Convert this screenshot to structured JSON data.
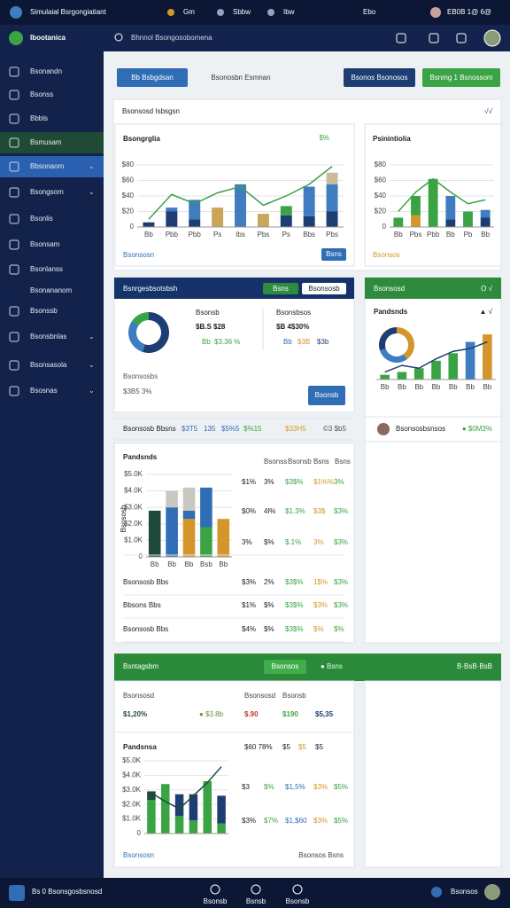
{
  "topbar": {
    "title": "Simulaial Bsrgongiatiant",
    "tabs": [
      "Gm",
      "Sbbw",
      "Ibw"
    ],
    "status": "Ebo",
    "date": "EB0B 1@ 6@"
  },
  "header": {
    "brand": "Ibootanica",
    "search": "Bhnnol Bsongosobomena"
  },
  "sidebar": {
    "items": [
      "Bsonandn",
      "Bsonss",
      "Bbbls",
      "Bsmusam",
      "Bbsonaom",
      "Bsongsom",
      "Bsonlis",
      "Bsonsam",
      "Bsonlanss",
      "Bsonananom",
      "Bsonssb",
      "Bsonsbnlas",
      "Bsonsasola",
      "Bsosnas"
    ]
  },
  "toolbar": {
    "buttons": [
      "Bb Bsbgdsan",
      "Bsonosbn Esmnan",
      "Bsonos Bsonosos",
      "Bsnmg 1 Bsnossom"
    ]
  },
  "overview": {
    "title": "Bsonsosd Isbsgsn",
    "toggle": "√√"
  },
  "chart_a": {
    "type": "bar",
    "title": "Bsongrglia",
    "badge": "$%",
    "link": "Bsonsosn",
    "button": "Bsns",
    "categories": [
      "Bb",
      "Pbb",
      "Pbb",
      "Ps",
      "Ibs",
      "Pbs",
      "Ps",
      "Bbs",
      "Pbs"
    ],
    "series": [
      {
        "color": "#1e3d73",
        "values": [
          6,
          20,
          10,
          0,
          0,
          0,
          15,
          14,
          20
        ]
      },
      {
        "color": "#3f7cc0",
        "values": [
          0,
          5,
          25,
          0,
          55,
          0,
          0,
          38,
          35
        ]
      },
      {
        "color": "#c9a65a",
        "values": [
          0,
          0,
          0,
          25,
          0,
          17,
          0,
          0,
          0
        ]
      },
      {
        "color": "#3aa344",
        "values": [
          0,
          0,
          0,
          0,
          0,
          0,
          12,
          0,
          0
        ]
      },
      {
        "color": "#c8bd96",
        "values": [
          0,
          0,
          0,
          0,
          0,
          0,
          0,
          0,
          15
        ]
      }
    ],
    "line": {
      "color": "#3aa344",
      "values": [
        10,
        42,
        30,
        44,
        52,
        28,
        40,
        55,
        78
      ]
    },
    "ylim": [
      0,
      80
    ],
    "yticks": [
      0,
      {
        "value": 20,
        "label": "$20"
      },
      {
        "value": 40,
        "label": "$40"
      },
      {
        "value": 60,
        "label": "$60"
      },
      {
        "value": 80,
        "label": "$80"
      }
    ]
  },
  "chart_b": {
    "type": "bar",
    "title": "Psinintiolia",
    "link": "Bsonsos",
    "categories": [
      "Bb",
      "Pbs",
      "Pbb",
      "Bb",
      "Pb",
      "Bb"
    ],
    "series": [
      {
        "color": "#1e3d73",
        "values": [
          0,
          0,
          0,
          10,
          0,
          12
        ]
      },
      {
        "color": "#3f7cc0",
        "values": [
          0,
          0,
          0,
          30,
          0,
          10
        ]
      },
      {
        "color": "#d4952a",
        "values": [
          0,
          15,
          0,
          0,
          0,
          0
        ]
      },
      {
        "color": "#3aa344",
        "values": [
          12,
          25,
          62,
          0,
          20,
          0
        ]
      }
    ],
    "line": {
      "color": "#3aa344",
      "values": [
        20,
        45,
        62,
        45,
        30,
        35
      ]
    },
    "ylim": [
      0,
      80
    ],
    "yticks": [
      0,
      {
        "value": 20,
        "label": "$20"
      },
      {
        "value": 40,
        "label": "$40"
      },
      {
        "value": 60,
        "label": "$60"
      },
      {
        "value": 80,
        "label": "$80"
      }
    ]
  },
  "summary": {
    "title": "Bsnrgesbsotsbsh",
    "tabs": [
      "Bsns",
      "Bsonsosb"
    ],
    "donut": {
      "type": "pie",
      "values": [
        55,
        30,
        15
      ],
      "colors": [
        "#1e3d73",
        "#3f7cc0",
        "#3aa344"
      ]
    },
    "stat1": {
      "label": "Bsonsb",
      "value": "$B.S $28",
      "legend": [
        "Bb",
        "$3.36 %"
      ]
    },
    "stat2": {
      "label": "Bsonsbsos",
      "value": "$B 4$30%",
      "legend": [
        "Bb",
        "$3B",
        "$3b"
      ]
    },
    "note": "Bsonsosbs",
    "note_value": "$3B5 3%",
    "button": "Bsonsb",
    "row": [
      "Bsonsosb Bbsns",
      "$3T5",
      "135",
      "$5%5",
      "$%15",
      "$33H5",
      "©3 $b5"
    ],
    "row_colors": [
      "#222",
      "#2f6db5",
      "#2f6db5",
      "#2f6db5",
      "#3aa344",
      "#d4952a",
      "#555"
    ]
  },
  "products": {
    "title": "Pandsnds",
    "axis_label": "Bsnsosb",
    "header": [
      "Bsonss",
      "Bsonsb",
      "Bsns",
      "Bsns"
    ],
    "chart": {
      "type": "bar",
      "categories": [
        "Bb",
        "Bb",
        "Bb",
        "Bsb",
        "Bb"
      ],
      "series": [
        {
          "color": "#1d4a3a",
          "values": [
            2800,
            0,
            0,
            0,
            0
          ]
        },
        {
          "color": "#d4952a",
          "values": [
            0,
            0,
            2300,
            0,
            2300
          ]
        },
        {
          "color": "#3aa344",
          "values": [
            0,
            0,
            0,
            1800,
            0
          ]
        },
        {
          "color": "#2f6db5",
          "values": [
            0,
            3000,
            500,
            2400,
            0
          ]
        },
        {
          "color": "#c8c8c0",
          "values": [
            0,
            1000,
            1400,
            0,
            0
          ]
        }
      ],
      "ylim": [
        0,
        5000
      ],
      "yticks": [
        0,
        {
          "value": 1000,
          "label": "$1.0K"
        },
        {
          "value": 2000,
          "label": "$2.0K"
        },
        {
          "value": 3000,
          "label": "$3.0K"
        },
        {
          "value": 4000,
          "label": "$4.0K"
        },
        {
          "value": 5000,
          "label": "$5.0K"
        }
      ]
    },
    "rows": [
      {
        "cells": [
          "$1%",
          "3%",
          "$3$%",
          "$1%%",
          "3%"
        ]
      },
      {
        "cells": [
          "$0%",
          "4l%",
          "$1.3%",
          "$3$",
          "$3%"
        ]
      },
      {
        "cells": [
          "3%",
          "$%",
          "$.1%",
          "3%",
          "$3%"
        ]
      },
      {
        "label": "Bsonsosb Bbs",
        "cells": [
          "$3%",
          "2%",
          "$3$%",
          "1$%",
          "$3%"
        ]
      },
      {
        "label": "Bbsons Bbs",
        "cells": [
          "$1%",
          "$%",
          "$3$%",
          "$3%",
          "$3%"
        ]
      },
      {
        "label": "Bsonsosb Bbs",
        "cells": [
          "$4%",
          "$%",
          "$3$%",
          "$%",
          "$%"
        ]
      }
    ],
    "column_colors": [
      "#222",
      "#222",
      "#3aa344",
      "#d4952a",
      "#3aa344"
    ]
  },
  "side": {
    "title": "Bsonsosd",
    "controls": "O √",
    "subtitle": "Pandsnds",
    "sub_controls": "▲ √",
    "donut": {
      "type": "pie",
      "values": [
        40,
        30,
        30
      ],
      "colors": [
        "#d4952a",
        "#3f7cc0",
        "#1e3d73"
      ]
    },
    "chart": {
      "type": "bar",
      "categories": [
        "Bb",
        "Bb",
        "Bb",
        "Bb",
        "Bb",
        "Bb",
        "Bb"
      ],
      "series": [
        {
          "color": "#3aa344",
          "values": [
            5,
            8,
            12,
            20,
            28,
            0,
            0
          ]
        },
        {
          "color": "#3f7cc0",
          "values": [
            0,
            0,
            0,
            0,
            0,
            40,
            0
          ]
        },
        {
          "color": "#d4952a",
          "values": [
            0,
            0,
            0,
            0,
            0,
            0,
            48
          ]
        }
      ],
      "line": {
        "color": "#1e3d73",
        "values": [
          8,
          15,
          12,
          22,
          30,
          33,
          40
        ]
      },
      "ylim": [
        0,
        50
      ]
    },
    "person": "Bsonsosbsnsos",
    "person_value": "● $0M3%"
  },
  "finance": {
    "title": "Bsntagsbm",
    "button": "Bsonsos",
    "link": "● Bsns",
    "right": "B·BsB·BsB",
    "label1": "Bsonsosd",
    "value1": "$1,20%",
    "side1": "● $3.8b",
    "label2": "Bsonsosd",
    "label3": "Bsonsb",
    "values": [
      "$.90",
      "$190",
      "$5,35"
    ],
    "value_colors": [
      "#c0392b",
      "#3aa344",
      "#1e3d73"
    ],
    "chart_title": "Pandsnsa",
    "header": [
      "$60 78%",
      "$5",
      "$5",
      "$5"
    ],
    "rows": [
      [
        "$3",
        "$%",
        "$1,5%",
        "$3%",
        "$5%"
      ],
      [
        "$3%",
        "$7%",
        "$1,$60",
        "$3%",
        "$5%"
      ]
    ],
    "column_colors": [
      "#222",
      "#3aa344",
      "#2f6db5",
      "#d4952a",
      "#3aa344"
    ],
    "chart": {
      "type": "bar",
      "series": [
        {
          "color": "#3aa344",
          "values": [
            2300,
            3400,
            1200,
            900,
            3600,
            700
          ]
        },
        {
          "color": "#1d4a3a",
          "values": [
            600,
            0,
            0,
            0,
            0,
            0
          ]
        },
        {
          "color": "#1e3d73",
          "values": [
            0,
            0,
            1500,
            1800,
            0,
            1900
          ]
        }
      ],
      "line": {
        "color": "#1d4a3a",
        "values": [
          2800,
          2200,
          1700,
          2600,
          3500,
          4600
        ]
      },
      "ylim": [
        0,
        5000
      ],
      "yticks": [
        0,
        {
          "value": 1000,
          "label": "$1.0K"
        },
        {
          "value": 2000,
          "label": "$2.0K"
        },
        {
          "value": 3000,
          "label": "$3.0K"
        },
        {
          "value": 4000,
          "label": "$4.0K"
        },
        {
          "value": 5000,
          "label": "$5.0K"
        }
      ]
    },
    "footer_left": "Bsonsosn",
    "footer_right": "Bsonsos Bsns"
  },
  "bottombar": {
    "text": "Bs 0 Bsonsgosbsnosd",
    "tabs": [
      "Bsonsb",
      "Bsnsb",
      "Bsonsb"
    ],
    "user": "Bsonsos"
  }
}
